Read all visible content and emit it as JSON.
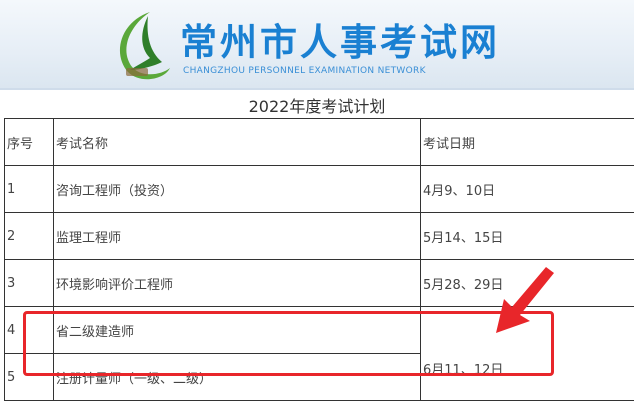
{
  "header": {
    "title": "常州市人事考试网",
    "subtitle": "CHANGZHOU PERSONNEL EXAMINATION NETWORK"
  },
  "plan_title": "2022年度考试计划",
  "table": {
    "columns": [
      "序号",
      "考试名称",
      "考试日期"
    ],
    "rows": [
      {
        "no": "1",
        "name": "咨询工程师（投资）",
        "date": "4月9、10日"
      },
      {
        "no": "2",
        "name": "监理工程师",
        "date": "5月14、15日"
      },
      {
        "no": "3",
        "name": "环境影响评价工程师",
        "date": "5月28、29日"
      },
      {
        "no": "4",
        "name": "省二级建造师",
        "date": "6月11、12日"
      },
      {
        "no": "5",
        "name": "注册计量师（一级、二级）",
        "date": ""
      }
    ]
  },
  "highlight_color": "#e8262a",
  "accent_color": "#1a80d2"
}
